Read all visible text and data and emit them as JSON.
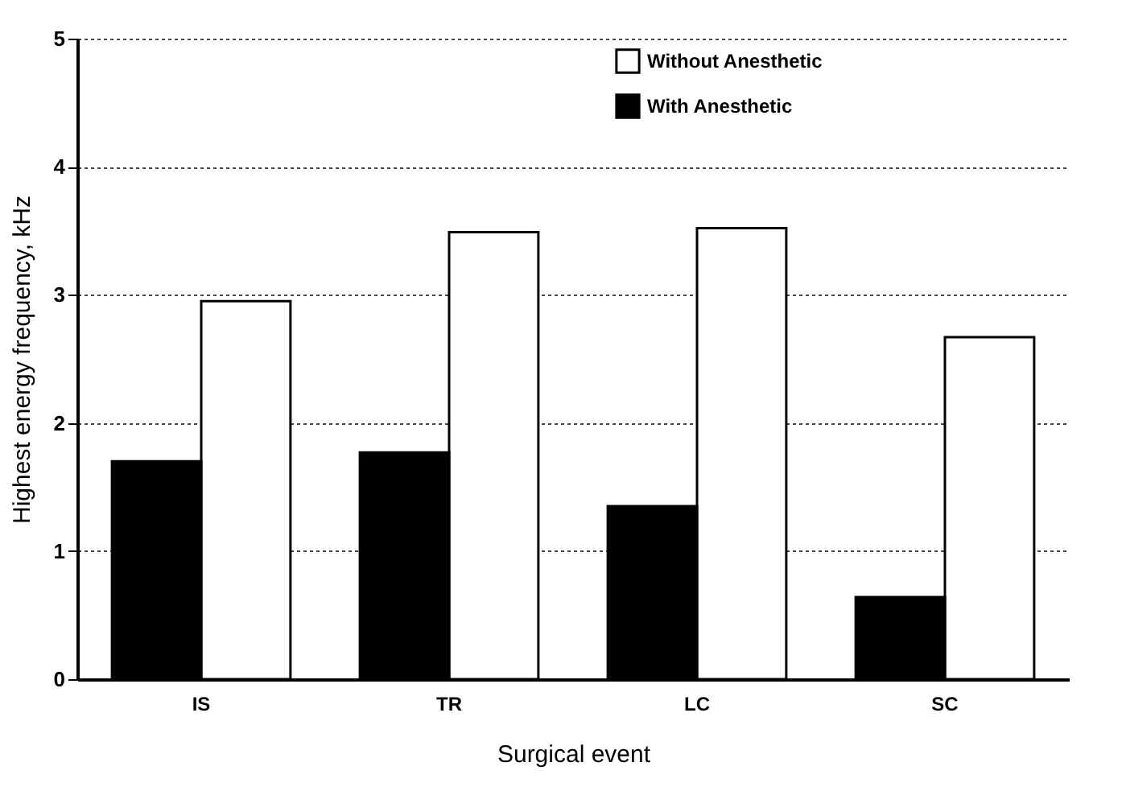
{
  "chart_data": {
    "type": "bar",
    "xlabel": "Surgical event",
    "ylabel": "Highest energy frequency, kHz",
    "categories": [
      "IS",
      "TR",
      "LC",
      "SC"
    ],
    "series": [
      {
        "name": "Without Anesthetic",
        "color": "#ffffff",
        "values": [
          2.95,
          3.49,
          3.52,
          2.67
        ]
      },
      {
        "name": "With Anesthetic",
        "color": "#000000",
        "values": [
          1.7,
          1.77,
          1.35,
          0.64
        ]
      }
    ],
    "ylim": [
      0,
      5
    ],
    "yticks": [
      0,
      1,
      2,
      3,
      4,
      5
    ],
    "grid": "y",
    "legend": "top right"
  }
}
